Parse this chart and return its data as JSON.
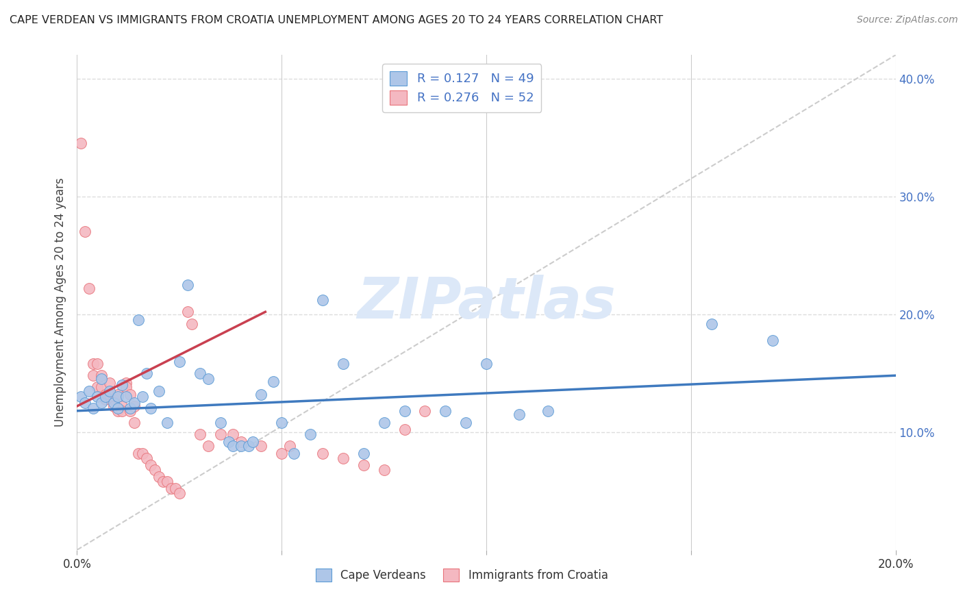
{
  "title": "CAPE VERDEAN VS IMMIGRANTS FROM CROATIA UNEMPLOYMENT AMONG AGES 20 TO 24 YEARS CORRELATION CHART",
  "source": "Source: ZipAtlas.com",
  "ylabel": "Unemployment Among Ages 20 to 24 years",
  "xmin": 0.0,
  "xmax": 0.2,
  "ymin": 0.0,
  "ymax": 0.42,
  "blue_scatter": [
    [
      0.001,
      0.13
    ],
    [
      0.002,
      0.125
    ],
    [
      0.003,
      0.135
    ],
    [
      0.004,
      0.12
    ],
    [
      0.005,
      0.13
    ],
    [
      0.006,
      0.145
    ],
    [
      0.006,
      0.125
    ],
    [
      0.007,
      0.13
    ],
    [
      0.008,
      0.135
    ],
    [
      0.009,
      0.125
    ],
    [
      0.01,
      0.13
    ],
    [
      0.01,
      0.12
    ],
    [
      0.011,
      0.14
    ],
    [
      0.012,
      0.13
    ],
    [
      0.013,
      0.12
    ],
    [
      0.014,
      0.125
    ],
    [
      0.015,
      0.195
    ],
    [
      0.016,
      0.13
    ],
    [
      0.017,
      0.15
    ],
    [
      0.018,
      0.12
    ],
    [
      0.02,
      0.135
    ],
    [
      0.022,
      0.108
    ],
    [
      0.025,
      0.16
    ],
    [
      0.027,
      0.225
    ],
    [
      0.03,
      0.15
    ],
    [
      0.032,
      0.145
    ],
    [
      0.035,
      0.108
    ],
    [
      0.037,
      0.092
    ],
    [
      0.038,
      0.088
    ],
    [
      0.04,
      0.088
    ],
    [
      0.042,
      0.088
    ],
    [
      0.043,
      0.092
    ],
    [
      0.045,
      0.132
    ],
    [
      0.048,
      0.143
    ],
    [
      0.05,
      0.108
    ],
    [
      0.053,
      0.082
    ],
    [
      0.057,
      0.098
    ],
    [
      0.06,
      0.212
    ],
    [
      0.065,
      0.158
    ],
    [
      0.07,
      0.082
    ],
    [
      0.075,
      0.108
    ],
    [
      0.08,
      0.118
    ],
    [
      0.09,
      0.118
    ],
    [
      0.095,
      0.108
    ],
    [
      0.1,
      0.158
    ],
    [
      0.108,
      0.115
    ],
    [
      0.115,
      0.118
    ],
    [
      0.155,
      0.192
    ],
    [
      0.17,
      0.178
    ]
  ],
  "pink_scatter": [
    [
      0.001,
      0.345
    ],
    [
      0.002,
      0.27
    ],
    [
      0.003,
      0.222
    ],
    [
      0.004,
      0.158
    ],
    [
      0.004,
      0.148
    ],
    [
      0.005,
      0.158
    ],
    [
      0.005,
      0.138
    ],
    [
      0.006,
      0.148
    ],
    [
      0.006,
      0.138
    ],
    [
      0.007,
      0.132
    ],
    [
      0.007,
      0.128
    ],
    [
      0.008,
      0.142
    ],
    [
      0.008,
      0.132
    ],
    [
      0.009,
      0.128
    ],
    [
      0.009,
      0.122
    ],
    [
      0.01,
      0.132
    ],
    [
      0.01,
      0.118
    ],
    [
      0.011,
      0.122
    ],
    [
      0.011,
      0.118
    ],
    [
      0.012,
      0.142
    ],
    [
      0.012,
      0.138
    ],
    [
      0.013,
      0.132
    ],
    [
      0.013,
      0.118
    ],
    [
      0.014,
      0.122
    ],
    [
      0.014,
      0.108
    ],
    [
      0.015,
      0.082
    ],
    [
      0.016,
      0.082
    ],
    [
      0.017,
      0.078
    ],
    [
      0.018,
      0.072
    ],
    [
      0.019,
      0.068
    ],
    [
      0.02,
      0.062
    ],
    [
      0.021,
      0.058
    ],
    [
      0.022,
      0.058
    ],
    [
      0.023,
      0.052
    ],
    [
      0.024,
      0.052
    ],
    [
      0.025,
      0.048
    ],
    [
      0.027,
      0.202
    ],
    [
      0.028,
      0.192
    ],
    [
      0.03,
      0.098
    ],
    [
      0.032,
      0.088
    ],
    [
      0.035,
      0.098
    ],
    [
      0.038,
      0.098
    ],
    [
      0.04,
      0.092
    ],
    [
      0.045,
      0.088
    ],
    [
      0.05,
      0.082
    ],
    [
      0.052,
      0.088
    ],
    [
      0.06,
      0.082
    ],
    [
      0.065,
      0.078
    ],
    [
      0.07,
      0.072
    ],
    [
      0.075,
      0.068
    ],
    [
      0.08,
      0.102
    ],
    [
      0.085,
      0.118
    ]
  ],
  "blue_line_x": [
    0.0,
    0.2
  ],
  "blue_line_y": [
    0.118,
    0.148
  ],
  "pink_line_x": [
    0.0,
    0.046
  ],
  "pink_line_y": [
    0.122,
    0.202
  ],
  "diagonal_line_x": [
    0.0,
    0.2
  ],
  "diagonal_line_y": [
    0.0,
    0.42
  ],
  "blue_dot_color": "#aec6e8",
  "blue_edge_color": "#5b9bd5",
  "pink_dot_color": "#f4b8c1",
  "pink_edge_color": "#e8737a",
  "blue_line_color": "#3f7abf",
  "pink_line_color": "#c94050",
  "diagonal_color": "#cccccc",
  "grid_color": "#dddddd",
  "bg_color": "#ffffff",
  "ytick_color": "#4472c4",
  "xtick_label_color": "#333333",
  "ylabel_color": "#444444",
  "title_color": "#222222",
  "source_color": "#888888",
  "watermark_text": "ZIPatlas",
  "watermark_color": "#dce8f8",
  "legend_top_labels": [
    "R = 0.127   N = 49",
    "R = 0.276   N = 52"
  ],
  "legend_bottom_labels": [
    "Cape Verdeans",
    "Immigrants from Croatia"
  ]
}
